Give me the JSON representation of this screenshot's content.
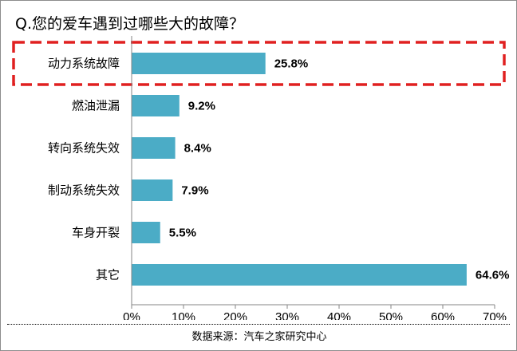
{
  "chart_data": {
    "type": "bar",
    "orientation": "horizontal",
    "title": "Q.您的爱车遇到过哪些大的故障？",
    "categories": [
      "动力系统故障",
      "燃油泄漏",
      "转向系统失效",
      "制动系统失效",
      "车身开裂",
      "其它"
    ],
    "values": [
      25.8,
      9.2,
      8.4,
      7.9,
      5.5,
      64.6
    ],
    "value_labels": [
      "25.8%",
      "9.2%",
      "8.4%",
      "7.9%",
      "5.5%",
      "64.6%"
    ],
    "xlim": [
      0,
      70
    ],
    "ticks": [
      0,
      10,
      20,
      30,
      40,
      50,
      60,
      70
    ],
    "tick_labels": [
      "0%",
      "10%",
      "20%",
      "30%",
      "40%",
      "50%",
      "60%",
      "70%"
    ],
    "highlighted_category": "动力系统故障",
    "bar_color": "#4BACC6",
    "highlight_color": "#E02020",
    "grid": false
  },
  "source_note": "数据来源：汽车之家研究中心"
}
